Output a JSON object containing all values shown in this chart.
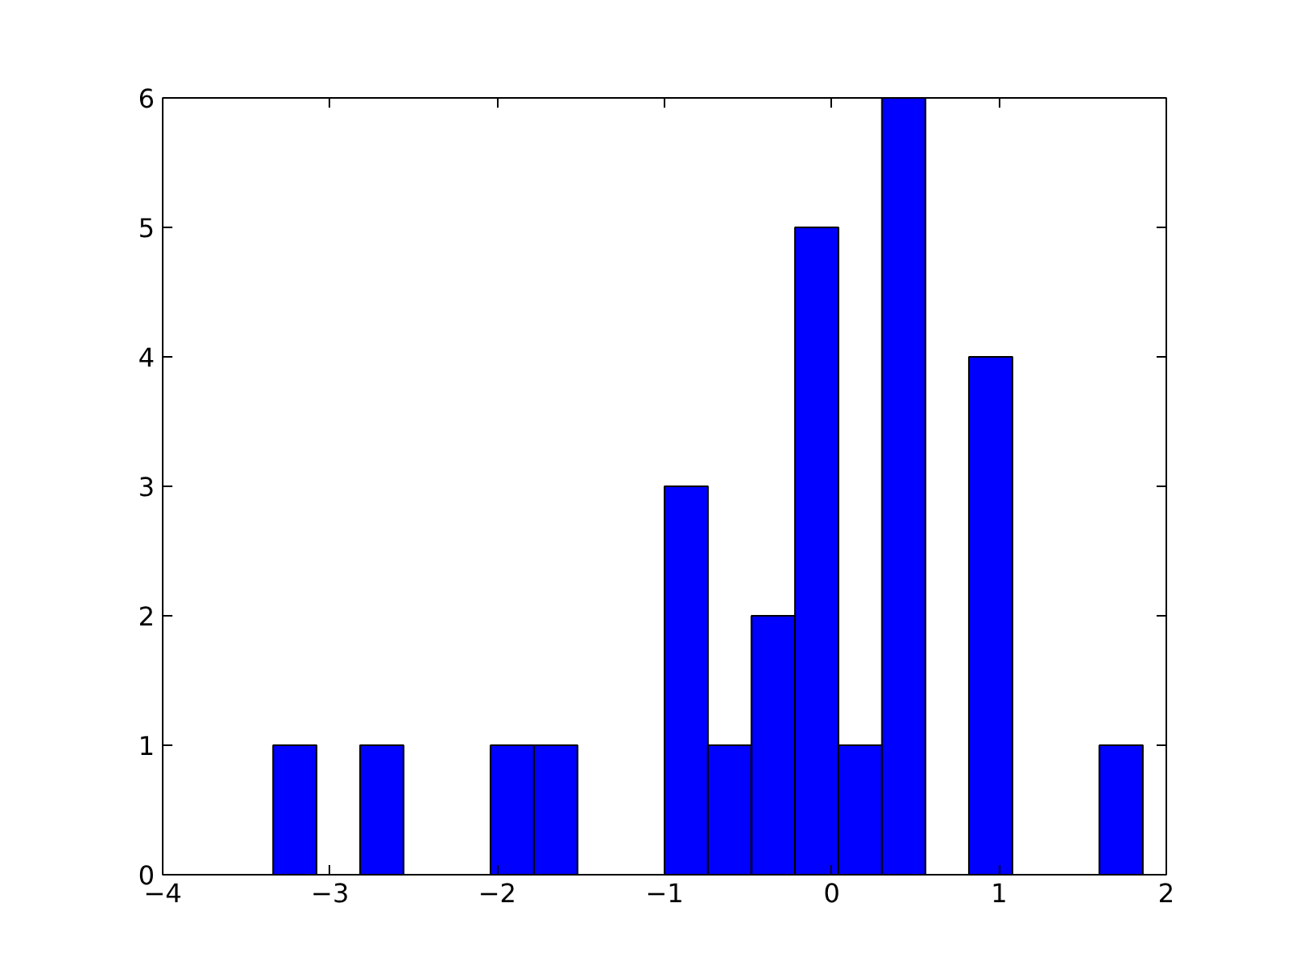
{
  "chart_data": {
    "type": "histogram",
    "color": "#0000ff",
    "bins": [
      -3.34,
      -3.08,
      -2.82,
      -2.56,
      -2.3,
      -2.04,
      -1.78,
      -1.52,
      -1.26,
      -1.0,
      -0.74,
      -0.48,
      -0.22,
      0.04,
      0.3,
      0.56,
      0.82,
      1.08,
      1.34,
      1.6,
      1.86
    ],
    "values": [
      1,
      0,
      1,
      0,
      0,
      1,
      1,
      0,
      0,
      3,
      1,
      2,
      5,
      1,
      6,
      0,
      4,
      0,
      0,
      1
    ],
    "xlim": [
      -4,
      2
    ],
    "xticks": [
      {
        "value": -4,
        "label": "−4"
      },
      {
        "value": -3,
        "label": "−3"
      },
      {
        "value": -2,
        "label": "−2"
      },
      {
        "value": -1,
        "label": "−1"
      },
      0,
      1,
      2
    ],
    "ylim": [
      0,
      6
    ],
    "yticks": [
      0,
      1,
      2,
      3,
      4,
      5,
      6
    ],
    "grid": false
  }
}
